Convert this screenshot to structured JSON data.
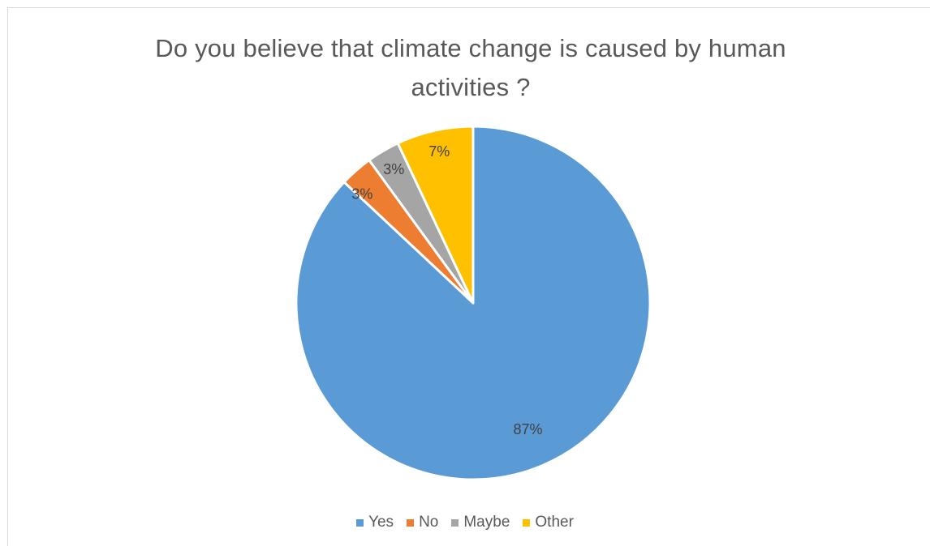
{
  "chart_data": {
    "type": "pie",
    "title": "Do you believe that climate change is caused by human activities ?",
    "start_angle_deg": 0,
    "direction": "clockwise",
    "slices": [
      {
        "name": "Yes",
        "value": 87,
        "label": "87%",
        "color": "#5b9bd5"
      },
      {
        "name": "No",
        "value": 3,
        "label": "3%",
        "color": "#ed7d31"
      },
      {
        "name": "Maybe",
        "value": 3,
        "label": "3%",
        "color": "#a5a5a5"
      },
      {
        "name": "Other",
        "value": 7,
        "label": "7%",
        "color": "#ffc000"
      }
    ],
    "legend_position": "bottom"
  }
}
